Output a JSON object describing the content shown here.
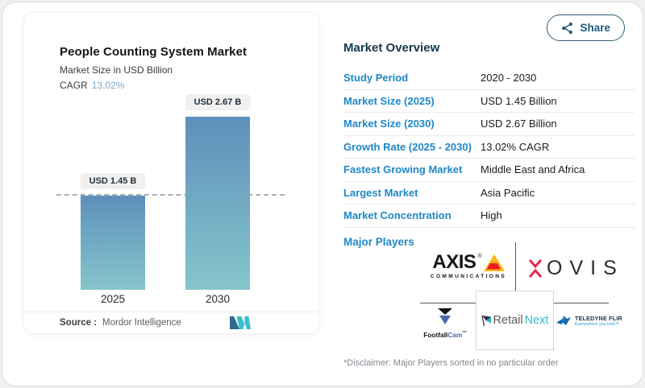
{
  "share": {
    "label": "Share",
    "icon": "share-nodes-icon",
    "color": "#1f5a77"
  },
  "chart_card": {
    "title": "People Counting System Market",
    "subtitle": "Market Size in USD Billion",
    "cagr_label": "CAGR",
    "cagr_value": "13.02%",
    "source_label": "Source :",
    "source_value": "Mordor Intelligence",
    "logo": "mordor-intelligence-logo"
  },
  "chart_data": {
    "type": "bar",
    "categories": [
      "2025",
      "2030"
    ],
    "values": [
      1.45,
      2.67
    ],
    "bar_labels": [
      "USD 1.45 B",
      "USD 2.67 B"
    ],
    "unit": "USD Billion",
    "reference_line": 1.45,
    "reference_line_style": "dashed",
    "ylim": [
      0,
      2.8
    ],
    "grid": false,
    "bar_gradient_top": "#5d90bb",
    "bar_gradient_bottom": "#85c5cb"
  },
  "overview": {
    "title": "Market Overview",
    "rows": [
      {
        "label": "Study Period",
        "value": "2020 - 2030"
      },
      {
        "label": "Market Size (2025)",
        "value": "USD 1.45 Billion"
      },
      {
        "label": "Market Size (2030)",
        "value": "USD 2.67 Billion"
      },
      {
        "label": "Growth Rate (2025 - 2030)",
        "value": "13.02% CAGR"
      },
      {
        "label": "Fastest Growing Market",
        "value": "Middle East and Africa"
      },
      {
        "label": "Largest Market",
        "value": "Asia Pacific"
      },
      {
        "label": "Market Concentration",
        "value": "High"
      }
    ],
    "major_players_label": "Major Players",
    "players": [
      {
        "name": "axis-communications",
        "wordmark": "AXIS",
        "registered": "®",
        "subtext": "COMMUNICATIONS"
      },
      {
        "name": "xovis",
        "wordmark": "OVIS"
      },
      {
        "name": "footfallcam",
        "word_black": "Footfall",
        "word_blue": "Cam",
        "tm": "™"
      },
      {
        "name": "retailnext",
        "word_dark": "Retail",
        "word_teal": "Next"
      },
      {
        "name": "teledyne-flir",
        "wordmark": "TELEDYNE FLIR",
        "tagline": "Everywhere you look™"
      }
    ],
    "disclaimer": "*Disclaimer: Major Players sorted in no particular order"
  },
  "colors": {
    "accent_blue": "#1e88c7",
    "header_navy": "#14384e",
    "cagr_blue": "#74aac9",
    "pill_bg": "#f2f0ee",
    "dashed_line": "#aaaeb3"
  }
}
